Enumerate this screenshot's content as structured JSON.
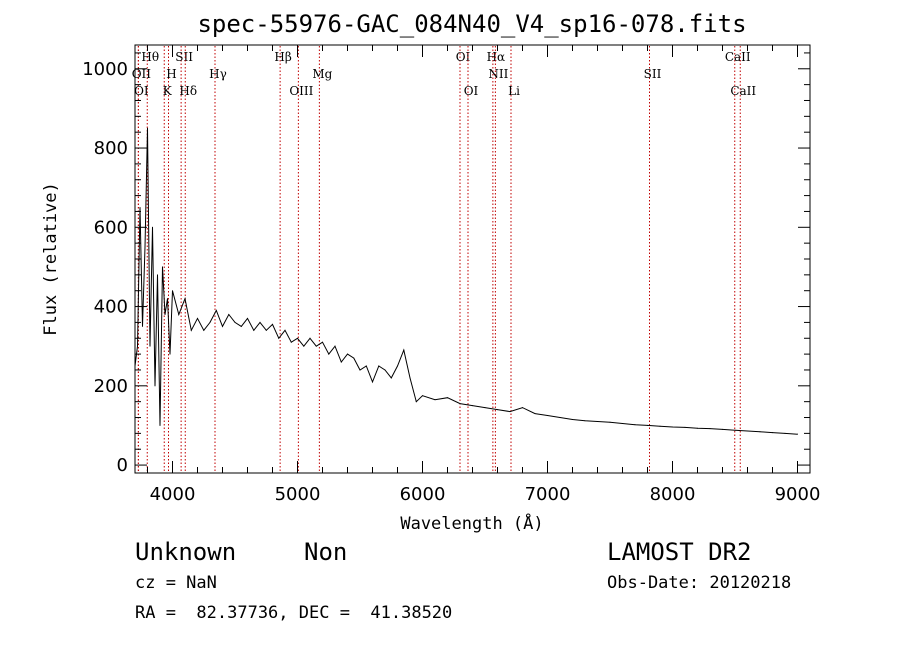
{
  "chart_data": {
    "type": "line",
    "title": "spec-55976-GAC_084N40_V4_sp16-078.fits",
    "xlabel": "Wavelength (Å)",
    "ylabel": "Flux (relative)",
    "xlim": [
      3700,
      9100
    ],
    "ylim": [
      -20,
      1060
    ],
    "xticks": [
      4000,
      5000,
      6000,
      7000,
      8000,
      9000
    ],
    "yticks": [
      0,
      200,
      400,
      600,
      800,
      1000
    ],
    "grid": false,
    "series": [
      {
        "x": [
          3700,
          3720,
          3740,
          3760,
          3780,
          3800,
          3820,
          3840,
          3860,
          3880,
          3900,
          3920,
          3940,
          3960,
          3980,
          4000,
          4050,
          4100,
          4150,
          4200,
          4250,
          4300,
          4350,
          4400,
          4450,
          4500,
          4550,
          4600,
          4650,
          4700,
          4750,
          4800,
          4850,
          4900,
          4950,
          5000,
          5050,
          5100,
          5150,
          5200,
          5250,
          5300,
          5350,
          5400,
          5450,
          5500,
          5550,
          5600,
          5650,
          5700,
          5750,
          5800,
          5850,
          5900,
          5950,
          6000,
          6100,
          6200,
          6300,
          6400,
          6500,
          6600,
          6700,
          6800,
          6900,
          7000,
          7100,
          7200,
          7300,
          7400,
          7500,
          7600,
          7700,
          7800,
          7900,
          8000,
          8100,
          8200,
          8300,
          8400,
          8500,
          8600,
          8700,
          8800,
          8900,
          9000
        ],
        "y": [
          250,
          300,
          650,
          350,
          550,
          850,
          300,
          600,
          200,
          480,
          100,
          500,
          380,
          420,
          280,
          440,
          380,
          420,
          340,
          370,
          340,
          360,
          390,
          350,
          380,
          360,
          350,
          370,
          340,
          360,
          340,
          355,
          320,
          340,
          310,
          320,
          300,
          320,
          300,
          310,
          280,
          300,
          260,
          280,
          270,
          240,
          250,
          210,
          250,
          240,
          220,
          250,
          290,
          220,
          160,
          175,
          165,
          170,
          155,
          150,
          145,
          140,
          135,
          145,
          130,
          125,
          120,
          115,
          112,
          110,
          108,
          105,
          102,
          100,
          98,
          96,
          95,
          93,
          92,
          90,
          88,
          86,
          84,
          82,
          80,
          78
        ]
      }
    ],
    "lines": [
      {
        "name": "Hθ",
        "wave": 3798,
        "row": 1
      },
      {
        "name": "OII",
        "wave": 3727,
        "row": 2
      },
      {
        "name": "OI",
        "wave": 3727,
        "row": 3
      },
      {
        "name": "SII",
        "wave": 4069,
        "row": 1
      },
      {
        "name": "H",
        "wave": 3968,
        "row": 2
      },
      {
        "name": "K",
        "wave": 3934,
        "row": 3
      },
      {
        "name": "Hδ",
        "wave": 4102,
        "row": 3
      },
      {
        "name": "Hγ",
        "wave": 4340,
        "row": 2
      },
      {
        "name": "Hβ",
        "wave": 4861,
        "row": 1
      },
      {
        "name": "OIII",
        "wave": 5007,
        "row": 3
      },
      {
        "name": "Mg",
        "wave": 5175,
        "row": 2
      },
      {
        "name": "OI",
        "wave": 6300,
        "row": 1
      },
      {
        "name": "OI",
        "wave": 6364,
        "row": 3
      },
      {
        "name": "Hα",
        "wave": 6563,
        "row": 1
      },
      {
        "name": "NII",
        "wave": 6583,
        "row": 2
      },
      {
        "name": "Li",
        "wave": 6708,
        "row": 3
      },
      {
        "name": "SII",
        "wave": 7816,
        "row": 2
      },
      {
        "name": "CaII",
        "wave": 8498,
        "row": 1
      },
      {
        "name": "CaII",
        "wave": 8542,
        "row": 3
      }
    ]
  },
  "info": {
    "object_class": "Unknown",
    "subclass": "Non",
    "cz": "cz = NaN",
    "coords": "RA =  82.37736, DEC =  41.38520",
    "survey": "LAMOST DR2",
    "obs_date": "Obs-Date: 20120218"
  }
}
